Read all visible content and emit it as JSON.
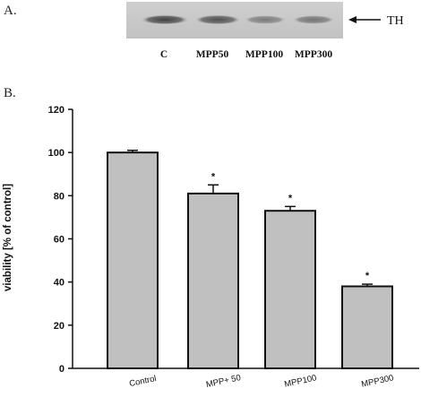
{
  "panel_a": {
    "letter": "A.",
    "protein_label": "TH",
    "lanes": [
      "C",
      "MPP50",
      "MPP100",
      "MPP300"
    ]
  },
  "panel_b": {
    "letter": "B."
  },
  "chart_data": {
    "type": "bar",
    "categories": [
      "Control",
      "MPP+ 50",
      "MPP100",
      "MPP300"
    ],
    "values": [
      100,
      81,
      73,
      38
    ],
    "errors": [
      1,
      4,
      2,
      1
    ],
    "significance": [
      "",
      "*",
      "*",
      "*"
    ],
    "title": "",
    "xlabel": "",
    "ylabel": "viability [% of control]",
    "ylim": [
      0,
      120
    ],
    "yticks": [
      0,
      20,
      40,
      60,
      80,
      100,
      120
    ],
    "bar_color": "#c0c0c0",
    "grid": false
  }
}
